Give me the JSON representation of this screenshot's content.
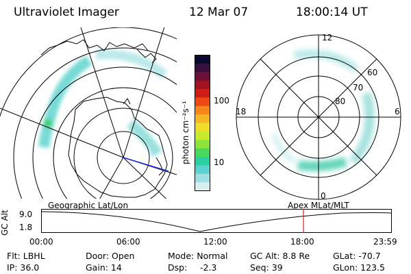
{
  "header": {
    "instrument": "Ultraviolet Imager",
    "date": "12 Mar 07",
    "time": "18:00:14 UT"
  },
  "colorbar": {
    "unit_label": "photon cm⁻²s⁻¹",
    "ticks": [
      "100",
      "10"
    ],
    "colors": [
      "#0a0a30",
      "#3a0f3f",
      "#6e0f37",
      "#a11323",
      "#cf1d15",
      "#ea4a12",
      "#f4861a",
      "#f7b623",
      "#f1dc2c",
      "#c9ea2c",
      "#8de337",
      "#48d95c",
      "#2ccfa0",
      "#5bd2cf",
      "#9ddfe4",
      "#d8eef0"
    ]
  },
  "polar_plot": {
    "mlt_labels": {
      "top": "12",
      "left": "18",
      "right": "6",
      "bottom": "0"
    },
    "lat_labels": [
      "60",
      "70",
      "80"
    ]
  },
  "timeline": {
    "left_label": "Geographic Lat/Lon",
    "right_label": "Apex MLat/MLT",
    "axis_label": "GC Alt",
    "y_ticks": [
      "9.0",
      "1.8"
    ],
    "x_ticks": [
      "00:00",
      "06:00",
      "12:00",
      "18:00",
      "23:59"
    ],
    "marker_time": "18:00"
  },
  "status": {
    "filter": "Flt: LBHL",
    "ip": "IP: 36.0",
    "door": "Door: Open",
    "gain": "Gain: 14",
    "mode": "Mode: Normal",
    "dsp_label": "Dsp:",
    "dsp_value": "-2.3",
    "gc_alt": "GC Alt: 8.8 Re",
    "seq": "Seq: 39",
    "glat": "GLat: -70.7",
    "glon": "GLon: 123.5"
  }
}
